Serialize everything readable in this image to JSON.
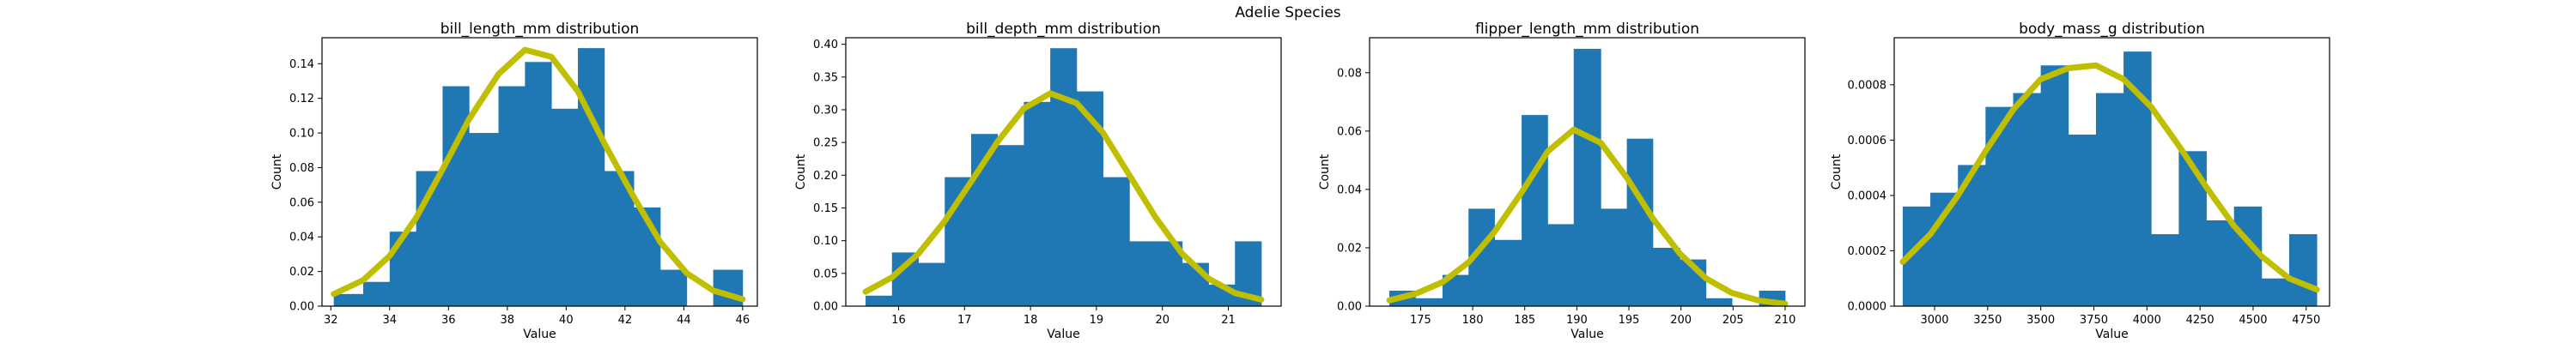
{
  "figure_title": "Adelie Species",
  "colors": {
    "bars": "#1f77b4",
    "curve": "#bfbf00",
    "axes": "#000000"
  },
  "chart_data": [
    {
      "type": "bar",
      "title": "bill_length_mm distribution",
      "xlabel": "Value",
      "ylabel": "Count",
      "xlim": [
        31.7,
        46.5
      ],
      "ylim": [
        0,
        0.155
      ],
      "xticks": [
        32,
        34,
        36,
        38,
        40,
        42,
        44,
        46
      ],
      "yticks": [
        0.0,
        0.02,
        0.04,
        0.06,
        0.08,
        0.1,
        0.12,
        0.14
      ],
      "tick_decimals": 2,
      "bins": [
        {
          "x0": 32.1,
          "x1": 33.1,
          "v": 0.007
        },
        {
          "x0": 33.1,
          "x1": 34.0,
          "v": 0.014
        },
        {
          "x0": 34.0,
          "x1": 34.9,
          "v": 0.043
        },
        {
          "x0": 34.9,
          "x1": 35.8,
          "v": 0.078
        },
        {
          "x0": 35.8,
          "x1": 36.7,
          "v": 0.127
        },
        {
          "x0": 36.7,
          "x1": 37.7,
          "v": 0.1
        },
        {
          "x0": 37.7,
          "x1": 38.6,
          "v": 0.127
        },
        {
          "x0": 38.6,
          "x1": 39.5,
          "v": 0.141
        },
        {
          "x0": 39.5,
          "x1": 40.4,
          "v": 0.114
        },
        {
          "x0": 40.4,
          "x1": 41.3,
          "v": 0.149
        },
        {
          "x0": 41.3,
          "x1": 42.3,
          "v": 0.078
        },
        {
          "x0": 42.3,
          "x1": 43.2,
          "v": 0.057
        },
        {
          "x0": 43.2,
          "x1": 44.1,
          "v": 0.021
        },
        {
          "x0": 44.1,
          "x1": 45.0,
          "v": 0.0
        },
        {
          "x0": 45.0,
          "x1": 46.0,
          "v": 0.021
        }
      ],
      "curve": {
        "x": [
          32.1,
          33.1,
          34.0,
          34.9,
          35.8,
          36.7,
          37.7,
          38.6,
          39.5,
          40.4,
          41.3,
          42.3,
          43.2,
          44.1,
          45.0,
          46.0
        ],
        "y": [
          0.007,
          0.015,
          0.029,
          0.051,
          0.079,
          0.108,
          0.134,
          0.148,
          0.144,
          0.124,
          0.094,
          0.063,
          0.037,
          0.019,
          0.009,
          0.004
        ]
      }
    },
    {
      "type": "bar",
      "title": "bill_depth_mm distribution",
      "xlabel": "Value",
      "ylabel": "Count",
      "xlim": [
        15.2,
        21.8
      ],
      "ylim": [
        0,
        0.41
      ],
      "xticks": [
        16,
        17,
        18,
        19,
        20,
        21
      ],
      "yticks": [
        0.0,
        0.05,
        0.1,
        0.15,
        0.2,
        0.25,
        0.3,
        0.35,
        0.4
      ],
      "tick_decimals": 2,
      "bins": [
        {
          "x0": 15.5,
          "x1": 15.9,
          "v": 0.016
        },
        {
          "x0": 15.9,
          "x1": 16.3,
          "v": 0.082
        },
        {
          "x0": 16.3,
          "x1": 16.7,
          "v": 0.066
        },
        {
          "x0": 16.7,
          "x1": 17.1,
          "v": 0.197
        },
        {
          "x0": 17.1,
          "x1": 17.5,
          "v": 0.263
        },
        {
          "x0": 17.5,
          "x1": 17.9,
          "v": 0.246
        },
        {
          "x0": 17.9,
          "x1": 18.3,
          "v": 0.312
        },
        {
          "x0": 18.3,
          "x1": 18.7,
          "v": 0.394
        },
        {
          "x0": 18.7,
          "x1": 19.1,
          "v": 0.328
        },
        {
          "x0": 19.1,
          "x1": 19.5,
          "v": 0.197
        },
        {
          "x0": 19.5,
          "x1": 19.9,
          "v": 0.099
        },
        {
          "x0": 19.9,
          "x1": 20.3,
          "v": 0.099
        },
        {
          "x0": 20.3,
          "x1": 20.7,
          "v": 0.066
        },
        {
          "x0": 20.7,
          "x1": 21.1,
          "v": 0.033
        },
        {
          "x0": 21.1,
          "x1": 21.5,
          "v": 0.099
        }
      ],
      "curve": {
        "x": [
          15.5,
          15.9,
          16.3,
          16.7,
          17.1,
          17.5,
          17.9,
          18.3,
          18.7,
          19.1,
          19.5,
          19.9,
          20.3,
          20.7,
          21.1,
          21.5
        ],
        "y": [
          0.022,
          0.044,
          0.08,
          0.13,
          0.19,
          0.251,
          0.302,
          0.325,
          0.31,
          0.265,
          0.2,
          0.135,
          0.08,
          0.042,
          0.02,
          0.01
        ]
      }
    },
    {
      "type": "bar",
      "title": "flipper_length_mm distribution",
      "xlabel": "Value",
      "ylabel": "Count",
      "xlim": [
        170.1,
        211.9
      ],
      "ylim": [
        0,
        0.092
      ],
      "xticks": [
        175,
        180,
        185,
        190,
        195,
        200,
        205,
        210
      ],
      "yticks": [
        0.0,
        0.02,
        0.04,
        0.06,
        0.08
      ],
      "tick_decimals": 2,
      "bins": [
        {
          "x0": 172.0,
          "x1": 174.5,
          "v": 0.0053
        },
        {
          "x0": 174.5,
          "x1": 177.1,
          "v": 0.0027
        },
        {
          "x0": 177.1,
          "x1": 179.6,
          "v": 0.0107
        },
        {
          "x0": 179.6,
          "x1": 182.1,
          "v": 0.0334
        },
        {
          "x0": 182.1,
          "x1": 184.7,
          "v": 0.0227
        },
        {
          "x0": 184.7,
          "x1": 187.2,
          "v": 0.0655
        },
        {
          "x0": 187.2,
          "x1": 189.7,
          "v": 0.0281
        },
        {
          "x0": 189.7,
          "x1": 192.3,
          "v": 0.0882
        },
        {
          "x0": 192.3,
          "x1": 194.8,
          "v": 0.0334
        },
        {
          "x0": 194.8,
          "x1": 197.3,
          "v": 0.0574
        },
        {
          "x0": 197.3,
          "x1": 199.9,
          "v": 0.02
        },
        {
          "x0": 199.9,
          "x1": 202.4,
          "v": 0.016
        },
        {
          "x0": 202.4,
          "x1": 204.9,
          "v": 0.0027
        },
        {
          "x0": 204.9,
          "x1": 207.5,
          "v": 0.0
        },
        {
          "x0": 207.5,
          "x1": 210.0,
          "v": 0.0053
        }
      ],
      "curve": {
        "x": [
          172.0,
          174.5,
          177.1,
          179.6,
          182.1,
          184.7,
          187.2,
          189.7,
          192.3,
          194.8,
          197.3,
          199.9,
          202.4,
          204.9,
          207.5,
          210.0
        ],
        "y": [
          0.002,
          0.0042,
          0.0082,
          0.015,
          0.0255,
          0.039,
          0.053,
          0.0605,
          0.056,
          0.044,
          0.03,
          0.018,
          0.0095,
          0.0045,
          0.0019,
          0.0008
        ]
      }
    },
    {
      "type": "bar",
      "title": "body_mass_g distribution",
      "xlabel": "Value",
      "ylabel": "Count",
      "xlim": [
        2810,
        4860
      ],
      "ylim": [
        0,
        0.00097
      ],
      "xticks": [
        3000,
        3250,
        3500,
        3750,
        4000,
        4250,
        4500,
        4750
      ],
      "yticks": [
        0.0,
        0.0002,
        0.0004,
        0.0006,
        0.0008
      ],
      "tick_decimals": 4,
      "bins": [
        {
          "x0": 2850,
          "x1": 2980,
          "v": 0.00036
        },
        {
          "x0": 2980,
          "x1": 3110,
          "v": 0.00041
        },
        {
          "x0": 3110,
          "x1": 3240,
          "v": 0.00051
        },
        {
          "x0": 3240,
          "x1": 3370,
          "v": 0.00072
        },
        {
          "x0": 3370,
          "x1": 3500,
          "v": 0.00077
        },
        {
          "x0": 3500,
          "x1": 3630,
          "v": 0.00087
        },
        {
          "x0": 3630,
          "x1": 3760,
          "v": 0.00062
        },
        {
          "x0": 3760,
          "x1": 3890,
          "v": 0.00077
        },
        {
          "x0": 3890,
          "x1": 4020,
          "v": 0.00092
        },
        {
          "x0": 4020,
          "x1": 4150,
          "v": 0.00026
        },
        {
          "x0": 4150,
          "x1": 4280,
          "v": 0.00056
        },
        {
          "x0": 4280,
          "x1": 4410,
          "v": 0.00031
        },
        {
          "x0": 4410,
          "x1": 4540,
          "v": 0.00036
        },
        {
          "x0": 4540,
          "x1": 4670,
          "v": 0.0001
        },
        {
          "x0": 4670,
          "x1": 4800,
          "v": 0.00026
        }
      ],
      "curve": {
        "x": [
          2850,
          2980,
          3110,
          3240,
          3370,
          3500,
          3630,
          3760,
          3890,
          4020,
          4150,
          4280,
          4410,
          4540,
          4670,
          4800
        ],
        "y": [
          0.00016,
          0.00026,
          0.0004,
          0.00056,
          0.00071,
          0.00082,
          0.00086,
          0.00087,
          0.00082,
          0.00072,
          0.00058,
          0.00043,
          0.00029,
          0.00018,
          0.0001,
          6e-05
        ]
      }
    }
  ]
}
